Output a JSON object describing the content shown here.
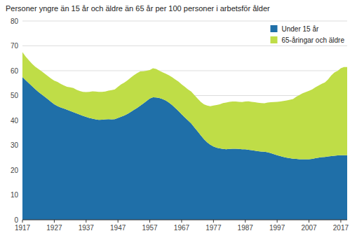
{
  "chart_data": {
    "type": "area",
    "stacked": true,
    "title": "Personer yngre än 15 år och äldre än 65 år per 100 personer i arbetsför ålder",
    "x": [
      1917,
      1918,
      1919,
      1920,
      1921,
      1922,
      1923,
      1924,
      1925,
      1926,
      1927,
      1928,
      1929,
      1930,
      1931,
      1932,
      1933,
      1934,
      1935,
      1936,
      1937,
      1938,
      1939,
      1940,
      1941,
      1942,
      1943,
      1944,
      1945,
      1946,
      1947,
      1948,
      1949,
      1950,
      1951,
      1952,
      1953,
      1954,
      1955,
      1956,
      1957,
      1958,
      1959,
      1960,
      1961,
      1962,
      1963,
      1964,
      1965,
      1966,
      1967,
      1968,
      1969,
      1970,
      1971,
      1972,
      1973,
      1974,
      1975,
      1976,
      1977,
      1978,
      1979,
      1980,
      1981,
      1982,
      1983,
      1984,
      1985,
      1986,
      1987,
      1988,
      1989,
      1990,
      1991,
      1992,
      1993,
      1994,
      1995,
      1996,
      1997,
      1998,
      1999,
      2000,
      2001,
      2002,
      2003,
      2004,
      2005,
      2006,
      2007,
      2008,
      2009,
      2010,
      2011,
      2012,
      2013,
      2014,
      2015,
      2016,
      2017,
      2018,
      2019
    ],
    "series": [
      {
        "name": "Under 15 år",
        "color": "#1F6FA8",
        "values": [
          57.5,
          56.2,
          55.0,
          53.8,
          52.6,
          51.5,
          50.5,
          49.5,
          48.5,
          47.5,
          46.5,
          45.8,
          45.2,
          44.8,
          44.3,
          43.8,
          43.3,
          42.8,
          42.3,
          41.8,
          41.4,
          41.0,
          40.7,
          40.4,
          40.2,
          40.3,
          40.4,
          40.5,
          40.4,
          40.5,
          41.0,
          41.5,
          42.0,
          42.6,
          43.4,
          44.2,
          45.0,
          45.9,
          46.8,
          47.8,
          48.8,
          49.3,
          49.2,
          49.0,
          48.6,
          48.0,
          47.2,
          46.2,
          45.0,
          43.8,
          42.5,
          41.2,
          40.0,
          38.8,
          37.2,
          35.6,
          34.0,
          32.5,
          31.2,
          30.2,
          29.5,
          29.0,
          28.7,
          28.5,
          28.4,
          28.5,
          28.6,
          28.6,
          28.5,
          28.4,
          28.4,
          28.2,
          28.0,
          27.8,
          27.6,
          27.5,
          27.4,
          27.2,
          26.8,
          26.4,
          26.0,
          25.6,
          25.3,
          25.0,
          24.8,
          24.6,
          24.5,
          24.4,
          24.4,
          24.4,
          24.4,
          24.5,
          24.8,
          25.0,
          25.2,
          25.3,
          25.5,
          25.6,
          25.8,
          25.9,
          26.0,
          26.0,
          26.0
        ]
      },
      {
        "name": "65-åringar och äldre",
        "color": "#BFDD47",
        "values": [
          10.0,
          9.5,
          9.2,
          9.0,
          9.0,
          9.2,
          9.3,
          9.3,
          9.3,
          9.3,
          9.5,
          9.7,
          9.5,
          9.3,
          9.2,
          9.5,
          9.7,
          9.5,
          9.5,
          9.7,
          10.0,
          10.5,
          11.0,
          11.2,
          11.3,
          11.2,
          11.2,
          11.5,
          11.8,
          12.0,
          12.5,
          13.0,
          13.2,
          13.5,
          13.8,
          14.0,
          14.0,
          13.8,
          13.0,
          12.2,
          11.5,
          11.7,
          11.5,
          11.0,
          10.8,
          10.8,
          11.0,
          11.2,
          11.5,
          11.8,
          12.0,
          12.3,
          12.5,
          12.8,
          13.0,
          13.2,
          13.5,
          14.0,
          14.8,
          15.5,
          16.5,
          17.2,
          17.8,
          18.5,
          18.8,
          19.0,
          19.0,
          19.0,
          19.0,
          19.0,
          19.2,
          19.5,
          19.5,
          19.5,
          19.5,
          19.5,
          19.5,
          20.0,
          20.5,
          21.0,
          21.5,
          22.0,
          22.5,
          23.0,
          23.5,
          24.0,
          25.0,
          25.8,
          26.5,
          27.0,
          27.5,
          28.0,
          28.5,
          29.0,
          29.5,
          30.0,
          31.0,
          32.5,
          33.5,
          34.0,
          35.0,
          35.5,
          35.5
        ]
      }
    ],
    "xlim": [
      1917,
      2019
    ],
    "ylim": [
      0,
      80
    ],
    "xticks": [
      1917,
      1927,
      1937,
      1947,
      1957,
      1967,
      1977,
      1987,
      1997,
      2007,
      2017
    ],
    "yticks": [
      0,
      10,
      20,
      30,
      40,
      50,
      60,
      70,
      80
    ],
    "grid": true,
    "legend": "upper right"
  }
}
